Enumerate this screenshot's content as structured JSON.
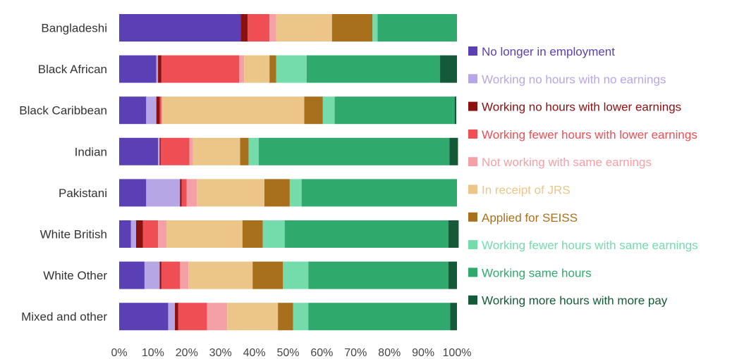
{
  "chart_data": {
    "type": "bar",
    "orientation": "horizontal",
    "stacked": true,
    "title": "",
    "xlabel": "",
    "ylabel": "",
    "xlim": [
      0,
      100
    ],
    "grid": false,
    "legend_position": "right",
    "x_ticks": [
      "0%",
      "10%",
      "20%",
      "30%",
      "40%",
      "50%",
      "60%",
      "70%",
      "80%",
      "90%",
      "100%"
    ],
    "categories": [
      "Bangladeshi",
      "Black African",
      "Black Caribbean",
      "Indian",
      "Pakistani",
      "White British",
      "White Other",
      "Mixed and other"
    ],
    "series": [
      {
        "name": "No longer in employment",
        "color": "#5b3fb5",
        "values": [
          36,
          11,
          8,
          11.5,
          8,
          3.5,
          7.5,
          14.5
        ]
      },
      {
        "name": "Working no hours with no earnings",
        "color": "#b7a6e6",
        "values": [
          0,
          0.5,
          3,
          0.5,
          10,
          1.5,
          4.5,
          2
        ]
      },
      {
        "name": "Working no hours with lower earnings",
        "color": "#8b1010",
        "values": [
          2,
          1,
          1,
          0.3,
          0.5,
          2,
          0.5,
          1
        ]
      },
      {
        "name": "Working fewer hours with lower earnings",
        "color": "#ef4e55",
        "values": [
          6.5,
          23,
          0.5,
          8.5,
          1.5,
          4.5,
          5.5,
          8.5
        ]
      },
      {
        "name": "Not working with same earnings",
        "color": "#f4a0a6",
        "values": [
          2,
          1.5,
          0.3,
          1,
          3,
          2.5,
          2.5,
          6
        ]
      },
      {
        "name": "In receipt of JRS",
        "color": "#ebc688",
        "values": [
          16.5,
          7.5,
          42,
          14,
          20,
          22.5,
          19,
          15
        ]
      },
      {
        "name": "Applied for SEISS",
        "color": "#a8701d",
        "values": [
          12,
          2,
          5.5,
          2.5,
          7.5,
          6,
          9,
          4.5
        ]
      },
      {
        "name": "Working fewer hours with same earnings",
        "color": "#74dcaa",
        "values": [
          1.5,
          9,
          3.5,
          3,
          3.5,
          6.5,
          7.5,
          4.5
        ]
      },
      {
        "name": "Working same hours",
        "color": "#2faa6c",
        "values": [
          23.5,
          39.5,
          35.5,
          56.5,
          46,
          48.5,
          41.5,
          42
        ]
      },
      {
        "name": "Working more hours with more pay",
        "color": "#145a38",
        "values": [
          0,
          5,
          0.5,
          2.5,
          0,
          3,
          2.5,
          2
        ]
      }
    ]
  }
}
